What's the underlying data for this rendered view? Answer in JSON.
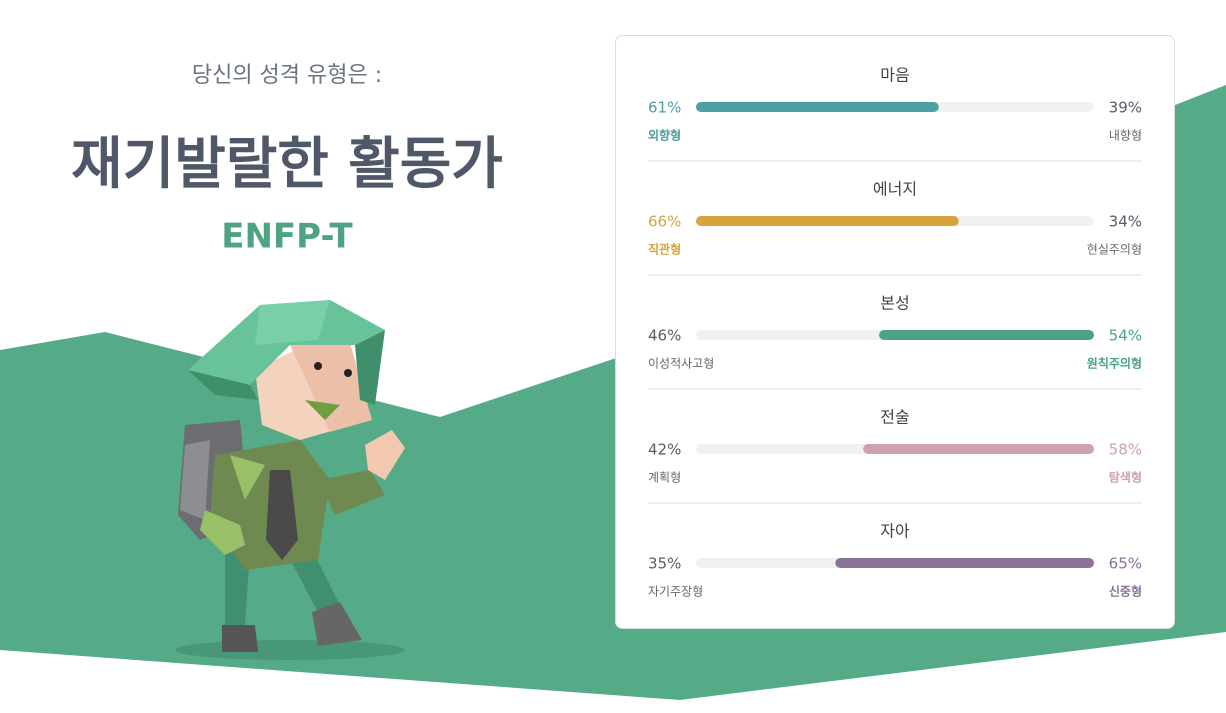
{
  "header": {
    "intro": "당신의 성격 유형은 :",
    "title": "재기발랄한 활동가",
    "code": "ENFP-T"
  },
  "traits": [
    {
      "name": "마음",
      "color": "#4d9fa1",
      "left": {
        "value": 61,
        "label": "61%"
      },
      "right": {
        "value": 39,
        "label": "39%"
      },
      "left_name": "외향형",
      "right_name": "내향형"
    },
    {
      "name": "에너지",
      "color": "#d7a43c",
      "left": {
        "value": 66,
        "label": "66%"
      },
      "right": {
        "value": 34,
        "label": "34%"
      },
      "left_name": "직관형",
      "right_name": "현실주의형"
    },
    {
      "name": "본성",
      "color": "#4ca384",
      "left": {
        "value": 46,
        "label": "46%"
      },
      "right": {
        "value": 54,
        "label": "54%"
      },
      "left_name": "이성적사고형",
      "right_name": "원칙주의형"
    },
    {
      "name": "전술",
      "color": "#cf9fb4",
      "left": {
        "value": 42,
        "label": "42%"
      },
      "right": {
        "value": 58,
        "label": "58%"
      },
      "left_name": "계획형",
      "right_name": "탐색형"
    },
    {
      "name": "자아",
      "color": "#8a729b",
      "left": {
        "value": 35,
        "label": "35%"
      },
      "right": {
        "value": 65,
        "label": "65%"
      },
      "left_name": "자기주장형",
      "right_name": "신중형"
    }
  ]
}
